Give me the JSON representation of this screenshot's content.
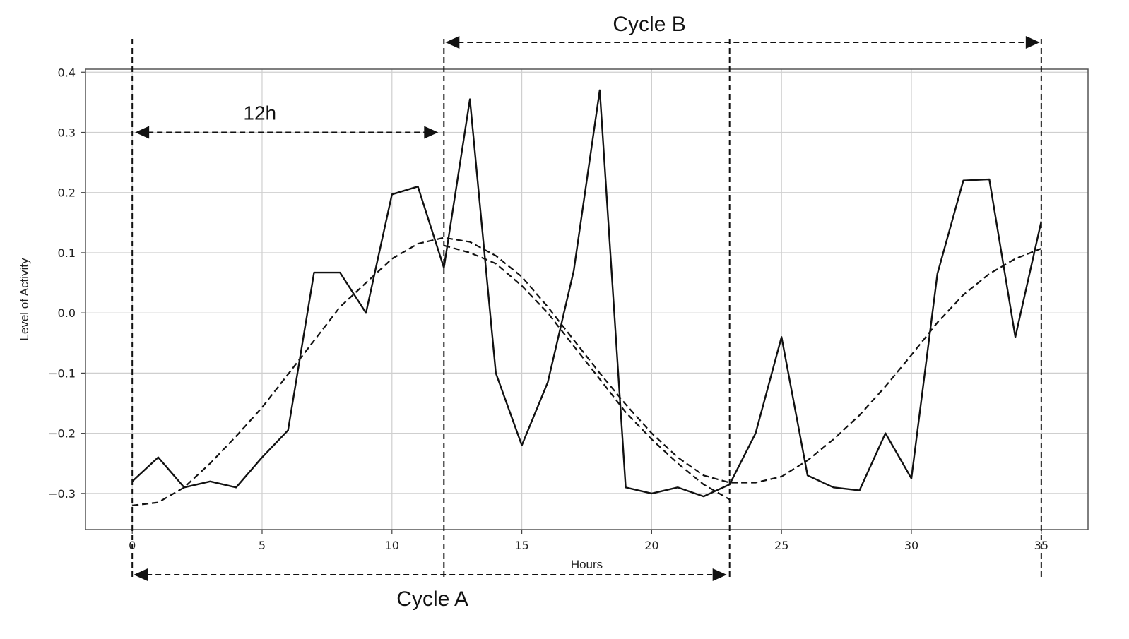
{
  "chart_data": {
    "type": "line",
    "title": "",
    "xlabel": "Hours",
    "ylabel": "Level of Activity",
    "xlim": [
      -1.8,
      36.8
    ],
    "ylim": [
      -0.36,
      0.405
    ],
    "xticks": [
      0,
      5,
      10,
      15,
      20,
      25,
      30,
      35
    ],
    "yticks": [
      0.4,
      0.3,
      0.2,
      0.1,
      0.0,
      -0.1,
      -0.2,
      -0.3
    ],
    "ytick_labels": [
      "0.4",
      "0.3",
      "0.2",
      "0.1",
      "0.0",
      "−0.1",
      "−0.2",
      "−0.3"
    ],
    "grid": true,
    "series": [
      {
        "style": "solid",
        "x": [
          0,
          1,
          2,
          3,
          4,
          5,
          6,
          7,
          8,
          9,
          10,
          11,
          12,
          13,
          14,
          15,
          16,
          17,
          18,
          19,
          20,
          21,
          22,
          23,
          24,
          25,
          26,
          27,
          28,
          29,
          30,
          31,
          32,
          33,
          34,
          35
        ],
        "values": [
          -0.28,
          -0.24,
          -0.29,
          -0.28,
          -0.29,
          -0.24,
          -0.195,
          0.067,
          0.067,
          0.0,
          0.197,
          0.21,
          0.075,
          0.355,
          -0.1,
          -0.22,
          -0.115,
          0.07,
          0.37,
          -0.29,
          -0.3,
          -0.29,
          -0.305,
          -0.285,
          -0.2,
          -0.04,
          -0.27,
          -0.29,
          -0.295,
          -0.2,
          -0.275,
          0.065,
          0.22,
          0.222,
          -0.04,
          0.152
        ]
      },
      {
        "style": "dashed",
        "x": [
          0,
          1,
          2,
          3,
          4,
          5,
          6,
          7,
          8,
          9,
          10,
          11,
          12,
          13,
          14,
          15,
          16,
          17,
          18,
          19,
          20,
          21,
          22,
          23,
          24,
          25,
          26,
          27,
          28,
          29,
          30,
          31,
          32,
          33,
          34,
          35
        ],
        "values": [
          -0.32,
          -0.315,
          -0.29,
          -0.25,
          -0.205,
          -0.157,
          -0.102,
          -0.046,
          0.01,
          0.05,
          0.09,
          0.115,
          0.125,
          0.118,
          0.095,
          0.06,
          0.01,
          -0.045,
          -0.1,
          -0.152,
          -0.2,
          -0.24,
          -0.27,
          -0.282,
          -0.282,
          -0.272,
          -0.245,
          -0.21,
          -0.17,
          -0.122,
          -0.07,
          -0.016,
          0.03,
          0.065,
          0.09,
          0.107
        ]
      },
      {
        "style": "dashed",
        "x": [
          12,
          13,
          14,
          15,
          16,
          17,
          18,
          19,
          20,
          21,
          22,
          23
        ],
        "values": [
          0.112,
          0.1,
          0.082,
          0.045,
          0.0,
          -0.055,
          -0.11,
          -0.165,
          -0.21,
          -0.25,
          -0.285,
          -0.31
        ]
      }
    ],
    "vlines": [
      0,
      12,
      23,
      35
    ],
    "annotations": [
      {
        "label": "12h",
        "from": 0,
        "to": 12,
        "y": 0.3,
        "position": "inside"
      },
      {
        "label": "Cycle B",
        "from": 12,
        "to": 35,
        "position": "above"
      },
      {
        "label": "Cycle A",
        "from": 0,
        "to": 23,
        "position": "below"
      }
    ]
  }
}
